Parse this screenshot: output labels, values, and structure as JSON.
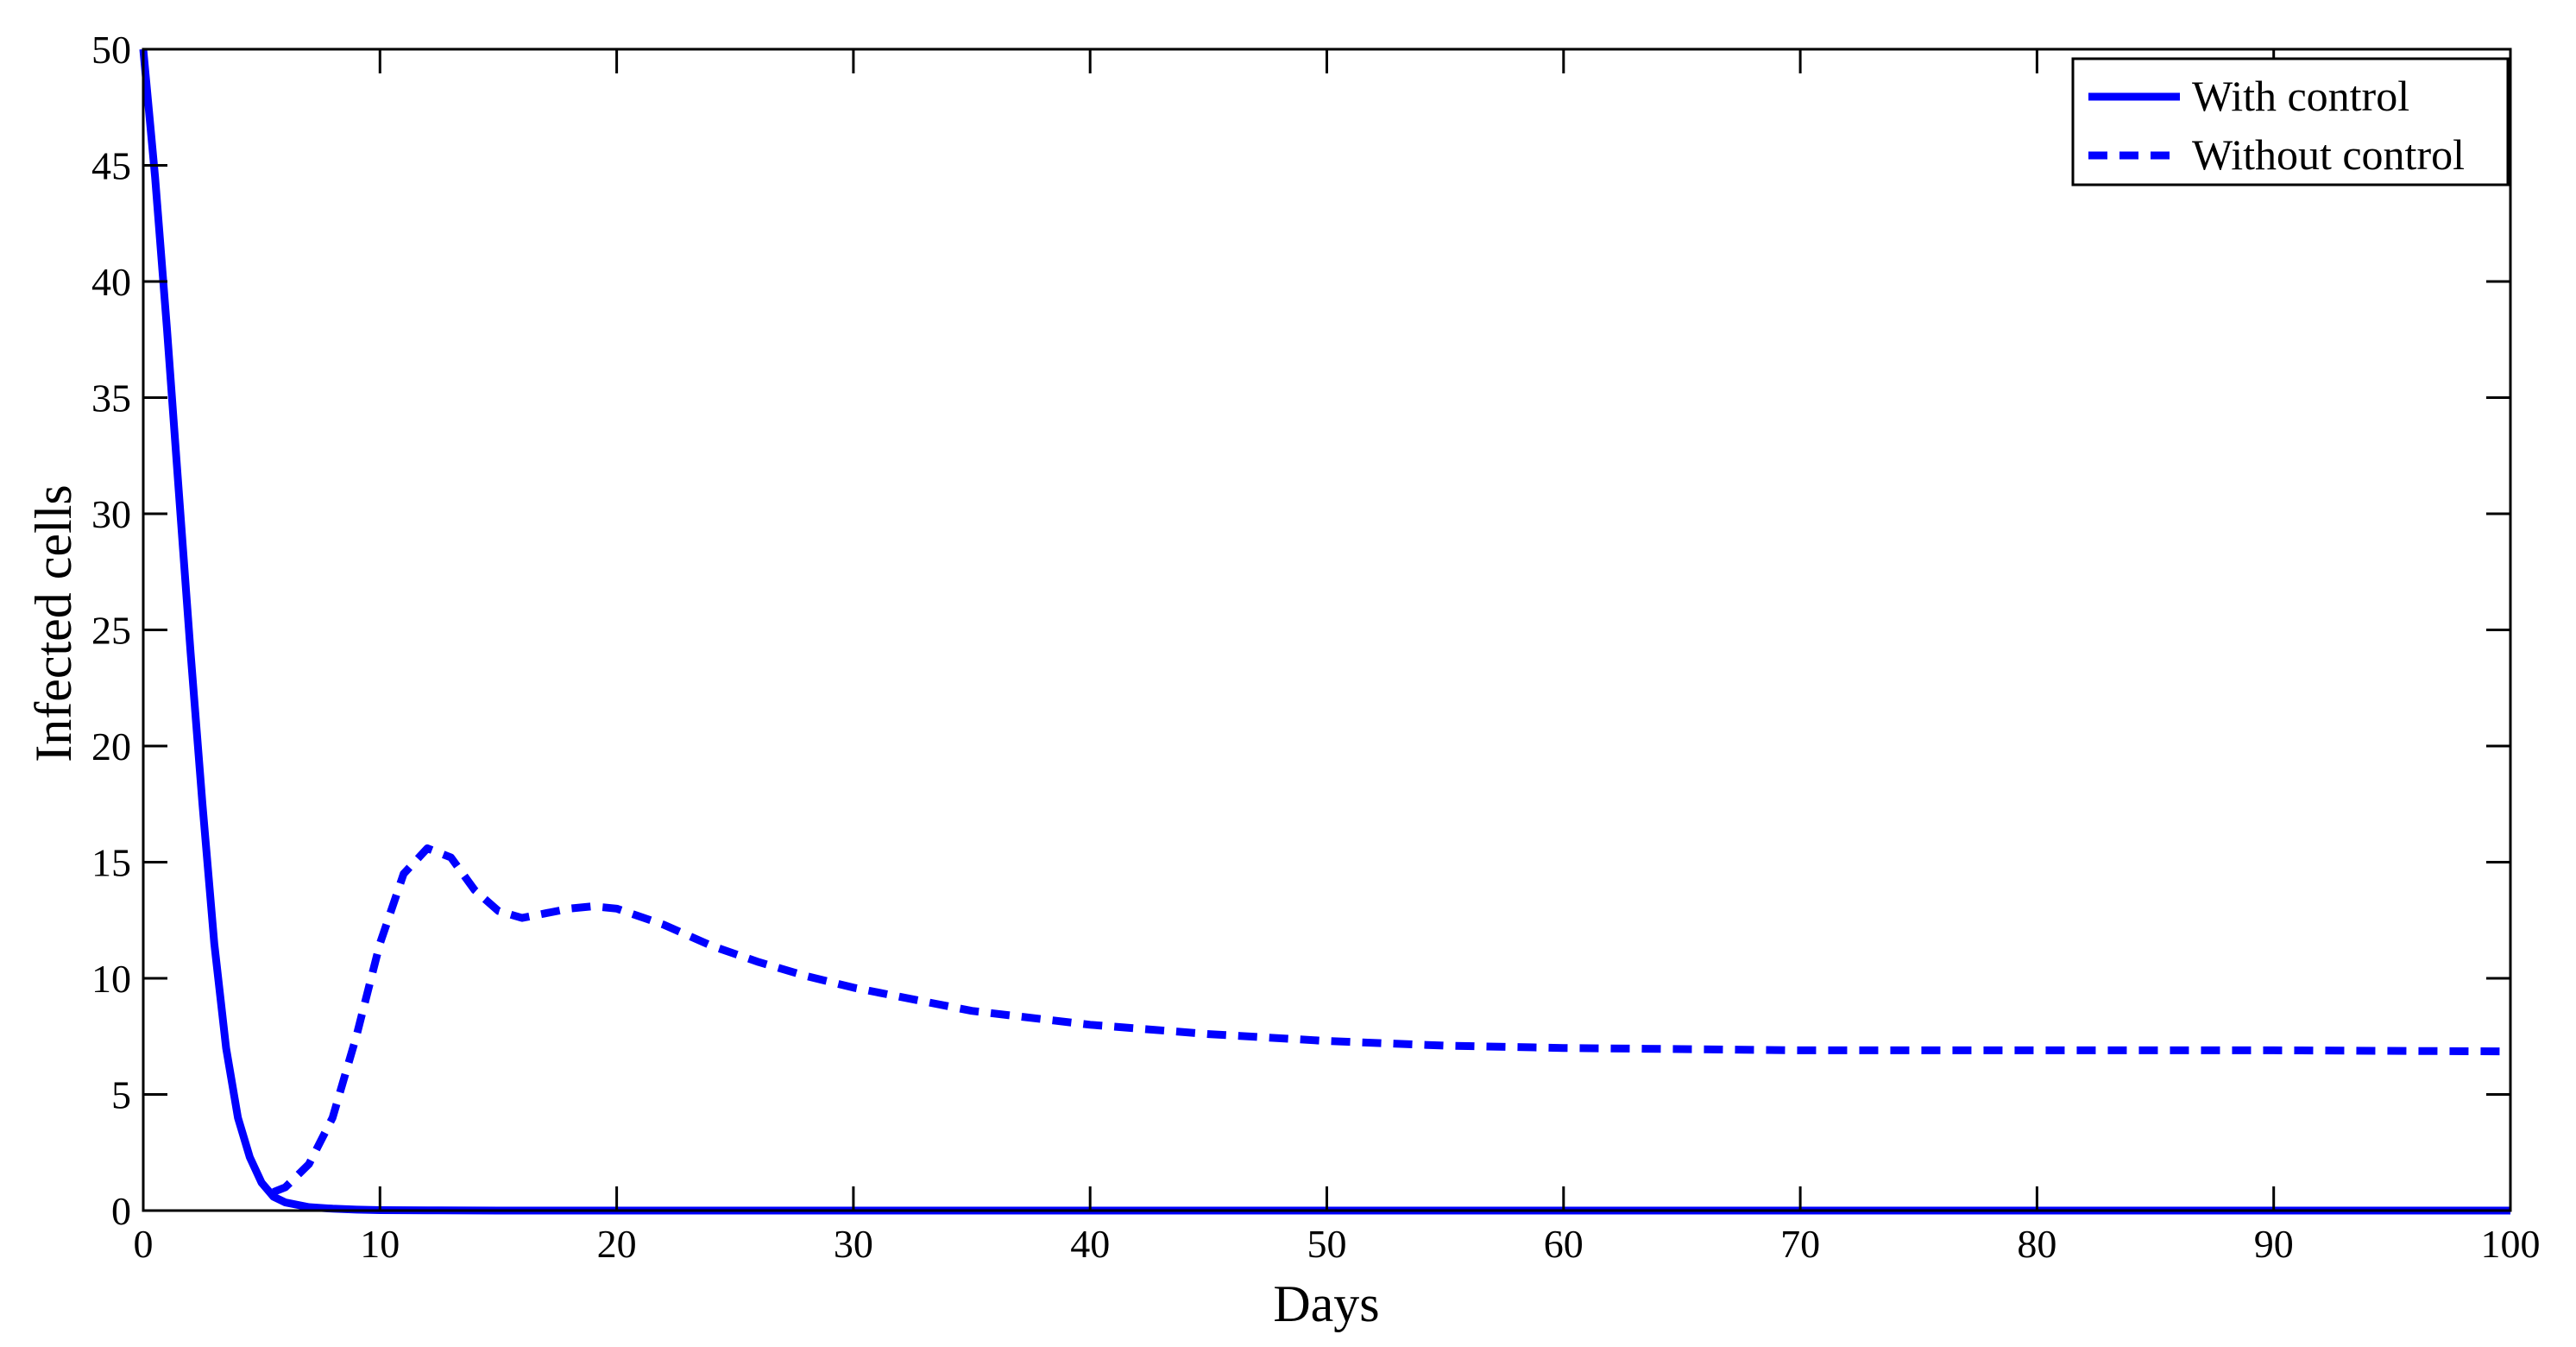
{
  "chart_data": {
    "type": "line",
    "xlabel": "Days",
    "ylabel": "Infected cells",
    "xlim": [
      0,
      100
    ],
    "ylim": [
      0,
      50
    ],
    "x_ticks": [
      0,
      10,
      20,
      30,
      40,
      50,
      60,
      70,
      80,
      90,
      100
    ],
    "y_ticks": [
      0,
      5,
      10,
      15,
      20,
      25,
      30,
      35,
      40,
      45,
      50
    ],
    "grid": false,
    "legend_position": "top-right",
    "colors": {
      "series": "#0000ff",
      "axes": "#000000",
      "background": "#ffffff"
    },
    "series": [
      {
        "name": "With control",
        "line_style": "solid",
        "x": [
          0,
          0.5,
          1,
          1.5,
          2,
          2.5,
          3,
          3.5,
          4,
          4.5,
          5,
          5.5,
          6,
          7,
          8,
          9,
          10,
          12,
          15,
          20,
          30,
          40,
          50,
          60,
          70,
          80,
          90,
          100
        ],
        "y": [
          50,
          44.5,
          38,
          31,
          24,
          17.5,
          11.5,
          7,
          4,
          2.3,
          1.2,
          0.6,
          0.35,
          0.15,
          0.08,
          0.04,
          0.02,
          0.01,
          0,
          0,
          0,
          0,
          0,
          0,
          0,
          0,
          0,
          0
        ]
      },
      {
        "name": "Without control",
        "line_style": "dashed",
        "x": [
          5.5,
          6,
          7,
          8,
          9,
          10,
          11,
          12,
          13,
          14,
          15,
          16,
          17,
          18,
          19,
          20,
          22,
          24,
          26,
          28,
          30,
          35,
          40,
          45,
          50,
          55,
          60,
          65,
          70,
          80,
          90,
          100
        ],
        "y": [
          0.8,
          1.0,
          2.0,
          4.0,
          7.5,
          11.5,
          14.5,
          15.6,
          15.2,
          13.8,
          12.9,
          12.6,
          12.8,
          13.0,
          13.1,
          13.0,
          12.3,
          11.4,
          10.7,
          10.1,
          9.6,
          8.6,
          8.0,
          7.6,
          7.3,
          7.1,
          7.0,
          6.95,
          6.9,
          6.9,
          6.9,
          6.85
        ]
      }
    ]
  }
}
